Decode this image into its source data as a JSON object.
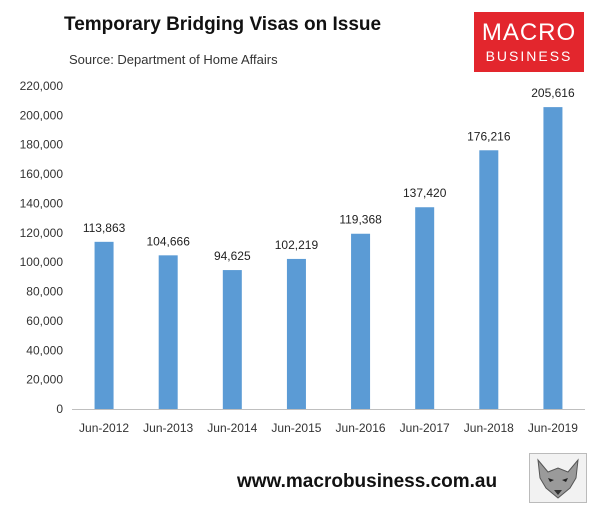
{
  "header": {
    "title": "Temporary Bridging Visas on Issue",
    "source": "Source: Department of Home Affairs"
  },
  "logo": {
    "line1": "MACRO",
    "line2": "BUSINESS",
    "color": "#e3262d"
  },
  "footer": {
    "url": "www.macrobusiness.com.au",
    "icon": "fox-logo-icon"
  },
  "chart_data": {
    "type": "bar",
    "title": "Temporary Bridging Visas on Issue",
    "subtitle": "Source: Department of Home Affairs",
    "categories": [
      "Jun-2012",
      "Jun-2013",
      "Jun-2014",
      "Jun-2015",
      "Jun-2016",
      "Jun-2017",
      "Jun-2018",
      "Jun-2019"
    ],
    "values": [
      113863,
      104666,
      94625,
      102219,
      119368,
      137420,
      176216,
      205616
    ],
    "data_labels": [
      "113,863",
      "104,666",
      "94,625",
      "102,219",
      "119,368",
      "137,420",
      "176,216",
      "205,616"
    ],
    "yticks": [
      "0",
      "20,000",
      "40,000",
      "60,000",
      "80,000",
      "100,000",
      "120,000",
      "140,000",
      "160,000",
      "180,000",
      "200,000",
      "220,000"
    ],
    "ylim": [
      0,
      220000
    ],
    "xlabel": "",
    "ylabel": "",
    "grid": false,
    "bar_color": "#5b9bd5"
  }
}
